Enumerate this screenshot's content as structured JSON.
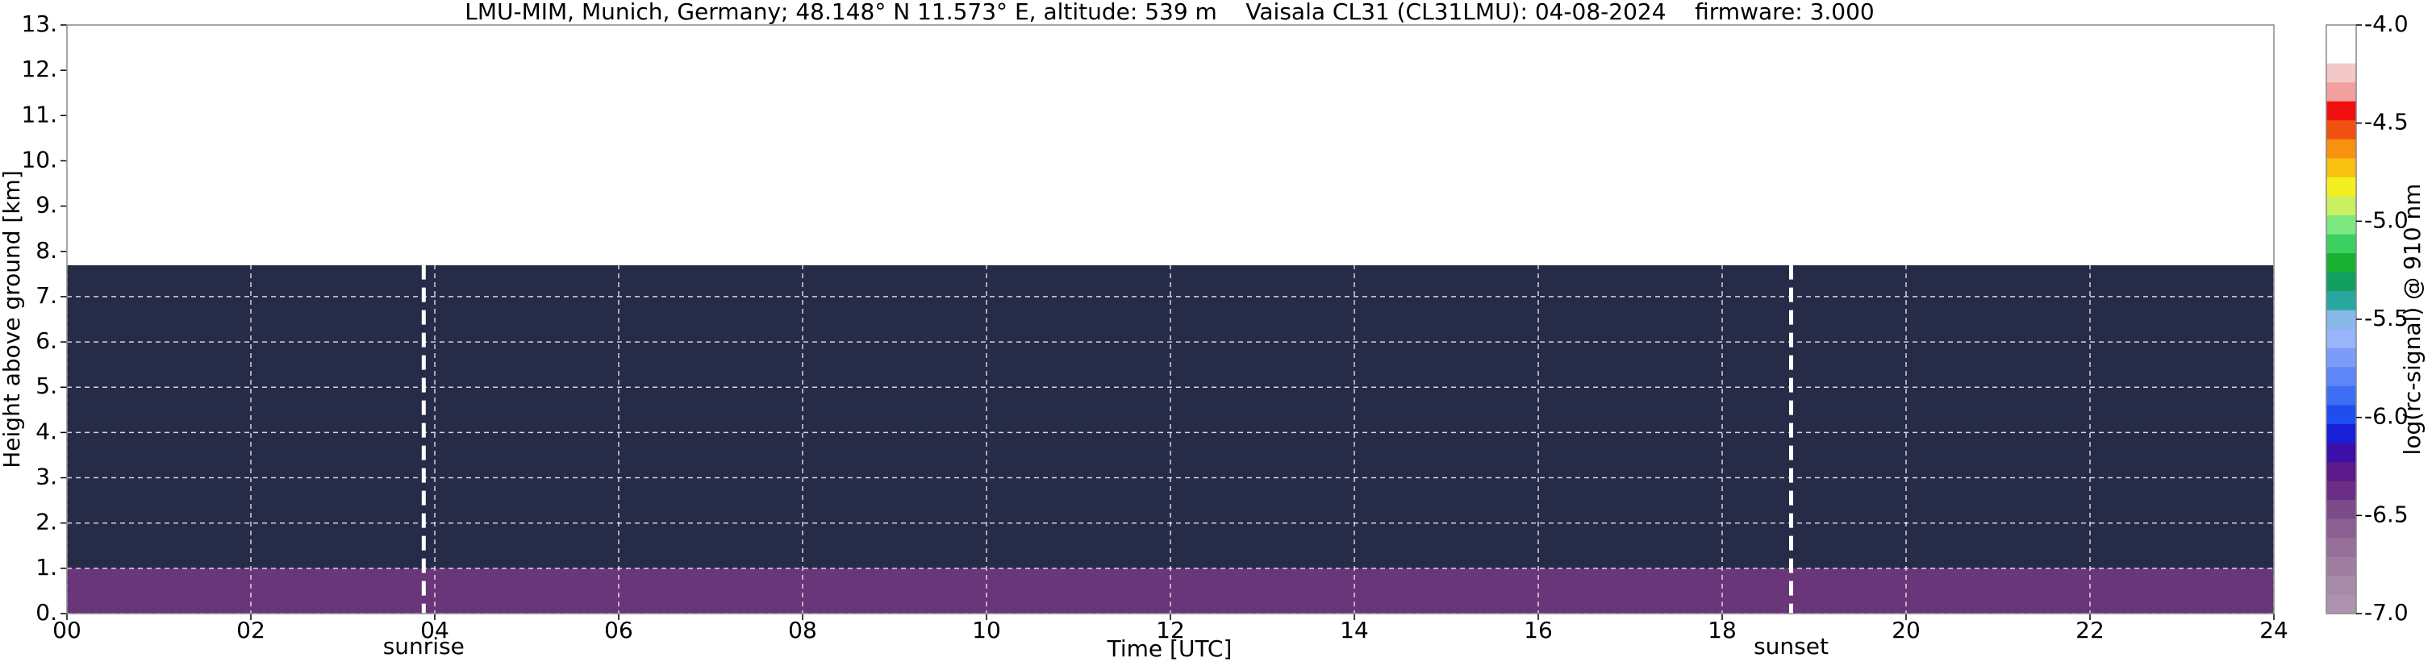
{
  "chart_data": {
    "type": "heatmap",
    "title": "LMU-MIM, Munich, Germany; 48.148° N 11.573° E, altitude: 539 m    Vaisala CL31 (CL31LMU): 04-08-2024    firmware: 3.000",
    "x_label": "Time [UTC]",
    "y_label": "Height above ground [km]",
    "xlim": [
      0,
      24
    ],
    "xticks": [
      {
        "value": 0,
        "label": "00"
      },
      {
        "value": 2,
        "label": "02"
      },
      {
        "value": 4,
        "label": "04"
      },
      {
        "value": 6,
        "label": "06"
      },
      {
        "value": 8,
        "label": "08"
      },
      {
        "value": 10,
        "label": "10"
      },
      {
        "value": 12,
        "label": "12"
      },
      {
        "value": 14,
        "label": "14"
      },
      {
        "value": 16,
        "label": "16"
      },
      {
        "value": 18,
        "label": "18"
      },
      {
        "value": 20,
        "label": "20"
      },
      {
        "value": 22,
        "label": "22"
      },
      {
        "value": 24,
        "label": "24"
      }
    ],
    "ylim": [
      0,
      13
    ],
    "yticks": [
      {
        "value": 0,
        "label": "0."
      },
      {
        "value": 1,
        "label": "1."
      },
      {
        "value": 2,
        "label": "2."
      },
      {
        "value": 3,
        "label": "3."
      },
      {
        "value": 4,
        "label": "4."
      },
      {
        "value": 5,
        "label": "5."
      },
      {
        "value": 6,
        "label": "6."
      },
      {
        "value": 7,
        "label": "7."
      },
      {
        "value": 8,
        "label": "8."
      },
      {
        "value": 9,
        "label": "9."
      },
      {
        "value": 10,
        "label": "10."
      },
      {
        "value": 11,
        "label": "11."
      },
      {
        "value": 12,
        "label": "12."
      },
      {
        "value": 13,
        "label": "13."
      }
    ],
    "grid": true,
    "annotations": [
      {
        "x": 3.88,
        "label": "sunrise"
      },
      {
        "x": 18.75,
        "label": "sunset"
      }
    ],
    "colorbar": {
      "label": "log(rc-signal) @ 910 nm",
      "lim": [
        -7,
        -4
      ],
      "ticks": [
        {
          "value": -7,
          "label": "-7.0"
        },
        {
          "value": -6.5,
          "label": "-6.5"
        },
        {
          "value": -6,
          "label": "-6.0"
        },
        {
          "value": -5.5,
          "label": "-5.5"
        },
        {
          "value": -5,
          "label": "-5.0"
        },
        {
          "value": -4.5,
          "label": "-4.5"
        },
        {
          "value": -4,
          "label": "-4.0"
        }
      ],
      "colors": [
        "#ad93ad",
        "#a78aa8",
        "#9f7fa1",
        "#96709a",
        "#8b5f92",
        "#7d4a8a",
        "#6b2e86",
        "#5a1a8a",
        "#3c10a8",
        "#1a20d8",
        "#1e4ef0",
        "#3e6ef5",
        "#5e86f7",
        "#7c9cf8",
        "#98b4fa",
        "#88b8e8",
        "#2aa6a0",
        "#12a060",
        "#18b030",
        "#3cd060",
        "#7ee880",
        "#c8f060",
        "#f4f020",
        "#f8c010",
        "#f89010",
        "#f05010",
        "#f01010",
        "#f4a0a0",
        "#f2c8c8",
        "#ffffff",
        "#ffffff"
      ]
    }
  }
}
